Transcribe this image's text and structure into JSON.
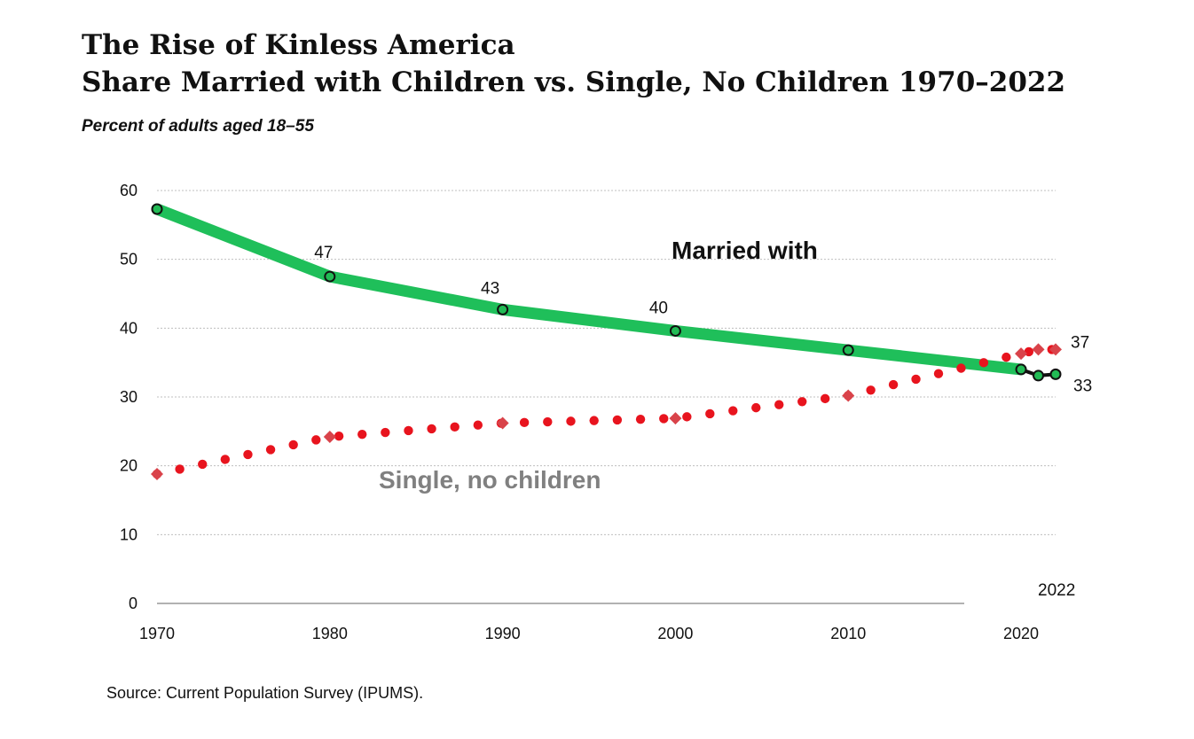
{
  "title_line1": "The Rise of Kinless America",
  "title_line2": "Share Married with Children vs. Single, No Children 1970–2022",
  "subtitle": "Percent of adults aged 18–55",
  "source": "Source: Current Population Survey (IPUMS).",
  "colors": {
    "married": "#1fbf5a",
    "single": "#e8141e",
    "marker_fill": "#22bb55",
    "diamond": "#d9434a",
    "grid": "#bfbfbf",
    "text": "#111111",
    "label_gray": "#808080"
  },
  "chart_data": {
    "type": "line",
    "ylim": [
      0,
      60
    ],
    "xlim": [
      1970,
      2022
    ],
    "yticks": [
      "0",
      "10",
      "20",
      "30",
      "40",
      "50",
      "60"
    ],
    "xticks": [
      "1970",
      "1980",
      "1990",
      "2000",
      "2010",
      "2020"
    ],
    "grid": true,
    "series": [
      {
        "name": "Married with",
        "style": "thick line with circle markers",
        "x": [
          1970,
          1980,
          1990,
          2000,
          2010,
          2020,
          2021,
          2022
        ],
        "values": [
          57.3,
          47.5,
          42.7,
          39.6,
          36.8,
          34.0,
          33.1,
          33.3
        ]
      },
      {
        "name": "Single, no children",
        "style": "dotted line with diamond markers",
        "x": [
          1970,
          1980,
          1990,
          2000,
          2010,
          2020,
          2021,
          2022
        ],
        "values": [
          18.8,
          24.2,
          26.2,
          26.9,
          30.2,
          36.3,
          36.9,
          36.9
        ]
      }
    ],
    "annotations": [
      {
        "text": "47",
        "x": 1980,
        "y": 47.5
      },
      {
        "text": "43",
        "x": 1990,
        "y": 42.7
      },
      {
        "text": "40",
        "x": 2000,
        "y": 39.6
      },
      {
        "text": "37",
        "x": 2022,
        "y": 36.9
      },
      {
        "text": "33",
        "x": 2022,
        "y": 33.3
      },
      {
        "text": "2022",
        "x": 2022,
        "y": 0
      }
    ]
  }
}
